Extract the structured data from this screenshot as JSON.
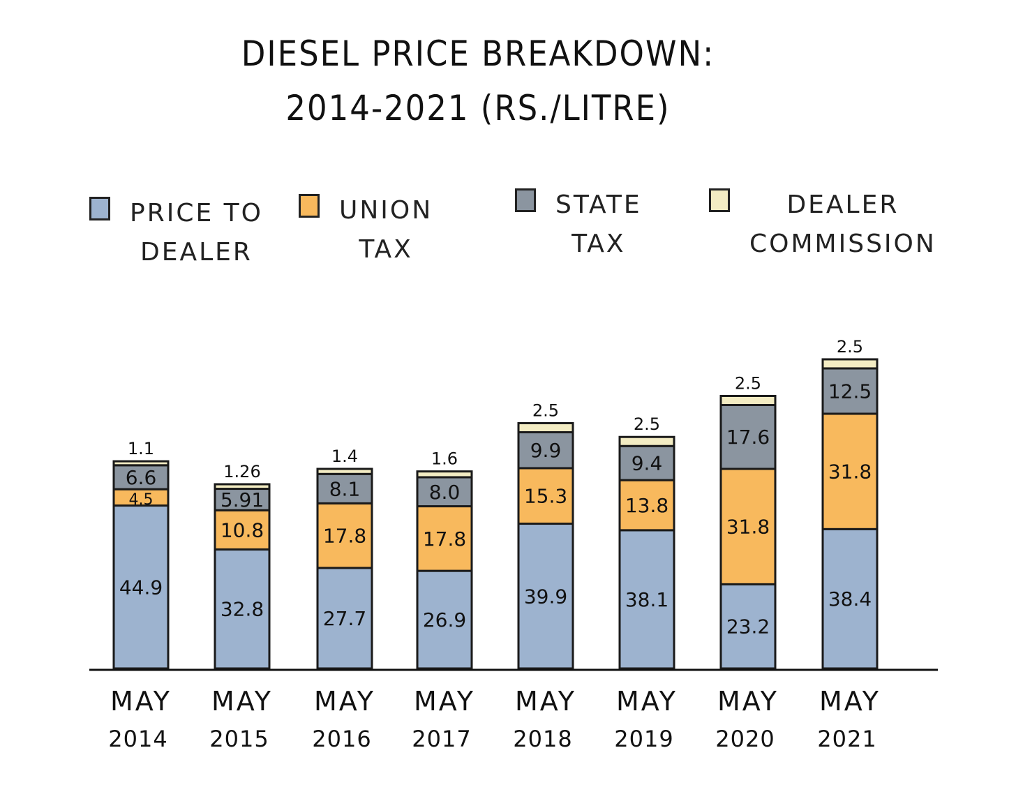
{
  "title_line1": "DIESEL PRICE BREAKDOWN:",
  "title_line2": "2014-2021 (RS./LITRE)",
  "legend": [
    {
      "line1": "PRICE TO",
      "line2": "DEALER",
      "color": "#9db3cf"
    },
    {
      "line1": "UNION",
      "line2": "TAX",
      "color": "#f8b95d"
    },
    {
      "line1": "STATE",
      "line2": "TAX",
      "color": "#8b95a0"
    },
    {
      "line1": "DEALER",
      "line2": "COMMISSION",
      "color": "#f3ecc3"
    }
  ],
  "chart_data": {
    "type": "bar",
    "stacked": true,
    "categories": [
      {
        "month": "MAY",
        "year": "2014"
      },
      {
        "month": "MAY",
        "year": "2015"
      },
      {
        "month": "MAY",
        "year": "2016"
      },
      {
        "month": "MAY",
        "year": "2017"
      },
      {
        "month": "MAY",
        "year": "2018"
      },
      {
        "month": "MAY",
        "year": "2019"
      },
      {
        "month": "MAY",
        "year": "2020"
      },
      {
        "month": "MAY",
        "year": "2021"
      }
    ],
    "series": [
      {
        "name": "PRICE TO DEALER",
        "color": "#9db3cf",
        "values": [
          44.9,
          32.8,
          27.7,
          26.9,
          39.9,
          38.1,
          23.2,
          38.4
        ],
        "labels": [
          "44.9",
          "32.8",
          "27.7",
          "26.9",
          "39.9",
          "38.1",
          "23.2",
          "38.4"
        ]
      },
      {
        "name": "UNION TAX",
        "color": "#f8b95d",
        "values": [
          4.5,
          10.8,
          17.8,
          17.8,
          15.3,
          13.8,
          31.8,
          31.8
        ],
        "labels": [
          "4.5",
          "10.8",
          "17.8",
          "17.8",
          "15.3",
          "13.8",
          "31.8",
          "31.8"
        ]
      },
      {
        "name": "STATE TAX",
        "color": "#8b95a0",
        "values": [
          6.6,
          5.91,
          8.1,
          8.0,
          9.9,
          9.4,
          17.6,
          12.5
        ],
        "labels": [
          "6.6",
          "5.91",
          "8.1",
          "8.0",
          "9.9",
          "9.4",
          "17.6",
          "12.5"
        ]
      },
      {
        "name": "DEALER COMMISSION",
        "color": "#f3ecc3",
        "values": [
          1.1,
          1.26,
          1.4,
          1.6,
          2.5,
          2.5,
          2.5,
          2.5
        ],
        "labels": [
          "1.1",
          "1.26",
          "1.4",
          "1.6",
          "2.5",
          "2.5",
          "2.5",
          "2.5"
        ]
      }
    ],
    "grid": false,
    "legend_position": "top"
  }
}
